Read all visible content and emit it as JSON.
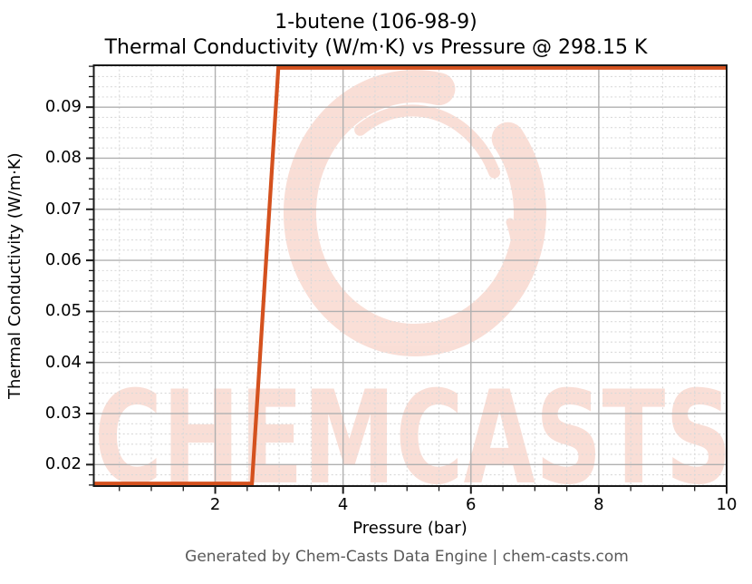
{
  "figure": {
    "title_line1": "1-butene (106-98-9)",
    "title_line2": "Thermal Conductivity (W/m·K) vs Pressure @ 298.15 K",
    "footer": "Generated by Chem-Casts Data Engine | chem-casts.com"
  },
  "watermark": {
    "text": "CHEMCASTS",
    "logo": "brush-ring-logo",
    "color": "#f5c4b6"
  },
  "chart_data": {
    "type": "line",
    "title": "1-butene (106-98-9)",
    "subtitle": "Thermal Conductivity (W/m·K) vs Pressure @ 298.15 K",
    "xlabel": "Pressure (bar)",
    "ylabel": "Thermal Conductivity (W/m·K)",
    "temperature_label": "298.15 K",
    "xlim": [
      0.1,
      10
    ],
    "ylim": [
      0.0158,
      0.0982
    ],
    "grid": "major-solid, minor-dashed",
    "legend": "none",
    "x_ticks": {
      "major": [
        2,
        4,
        6,
        8,
        10
      ],
      "major_labels": [
        "2",
        "4",
        "6",
        "8",
        "10"
      ],
      "minor": [
        0.5,
        1.0,
        1.5,
        2.5,
        3.0,
        3.5,
        4.5,
        5.0,
        5.5,
        6.5,
        7.0,
        7.5,
        8.5,
        9.0,
        9.5
      ]
    },
    "y_ticks": {
      "major": [
        0.02,
        0.03,
        0.04,
        0.05,
        0.06,
        0.07,
        0.08,
        0.09
      ],
      "major_labels": [
        "0.02",
        "0.03",
        "0.04",
        "0.05",
        "0.06",
        "0.07",
        "0.08",
        "0.09"
      ],
      "minor": [
        0.016,
        0.018,
        0.022,
        0.024,
        0.026,
        0.028,
        0.032,
        0.034,
        0.036,
        0.038,
        0.042,
        0.044,
        0.046,
        0.048,
        0.052,
        0.054,
        0.056,
        0.058,
        0.062,
        0.064,
        0.066,
        0.068,
        0.072,
        0.074,
        0.076,
        0.078,
        0.082,
        0.084,
        0.086,
        0.088,
        0.092,
        0.094,
        0.096,
        0.098
      ]
    },
    "series": [
      {
        "name": "thermal-conductivity-vs-pressure",
        "color": "#d4511e",
        "x": [
          0.1,
          0.5125,
          0.925,
          1.3375,
          1.75,
          2.1625,
          2.575,
          2.9875,
          3.4,
          3.8125,
          4.225,
          4.6375,
          5.05,
          5.4625,
          5.875,
          6.2875,
          6.7,
          7.1125,
          7.525,
          7.9375,
          8.35,
          8.7625,
          9.175,
          9.5875,
          10.0
        ],
        "y": [
          0.0163,
          0.0163,
          0.0163,
          0.0163,
          0.0163,
          0.0163,
          0.0163,
          0.0977,
          0.0977,
          0.0977,
          0.0977,
          0.0977,
          0.0977,
          0.0977,
          0.0977,
          0.0977,
          0.0977,
          0.0977,
          0.0977,
          0.0977,
          0.0977,
          0.0977,
          0.0977,
          0.0977,
          0.0977
        ]
      }
    ],
    "colors": {
      "line": "#d4511e",
      "grid_major": "#b0b0b0",
      "grid_minor": "#d9d9d9",
      "spine": "#1a1a1a",
      "watermark": "#f5c4b6",
      "footer_text": "#595959"
    }
  }
}
